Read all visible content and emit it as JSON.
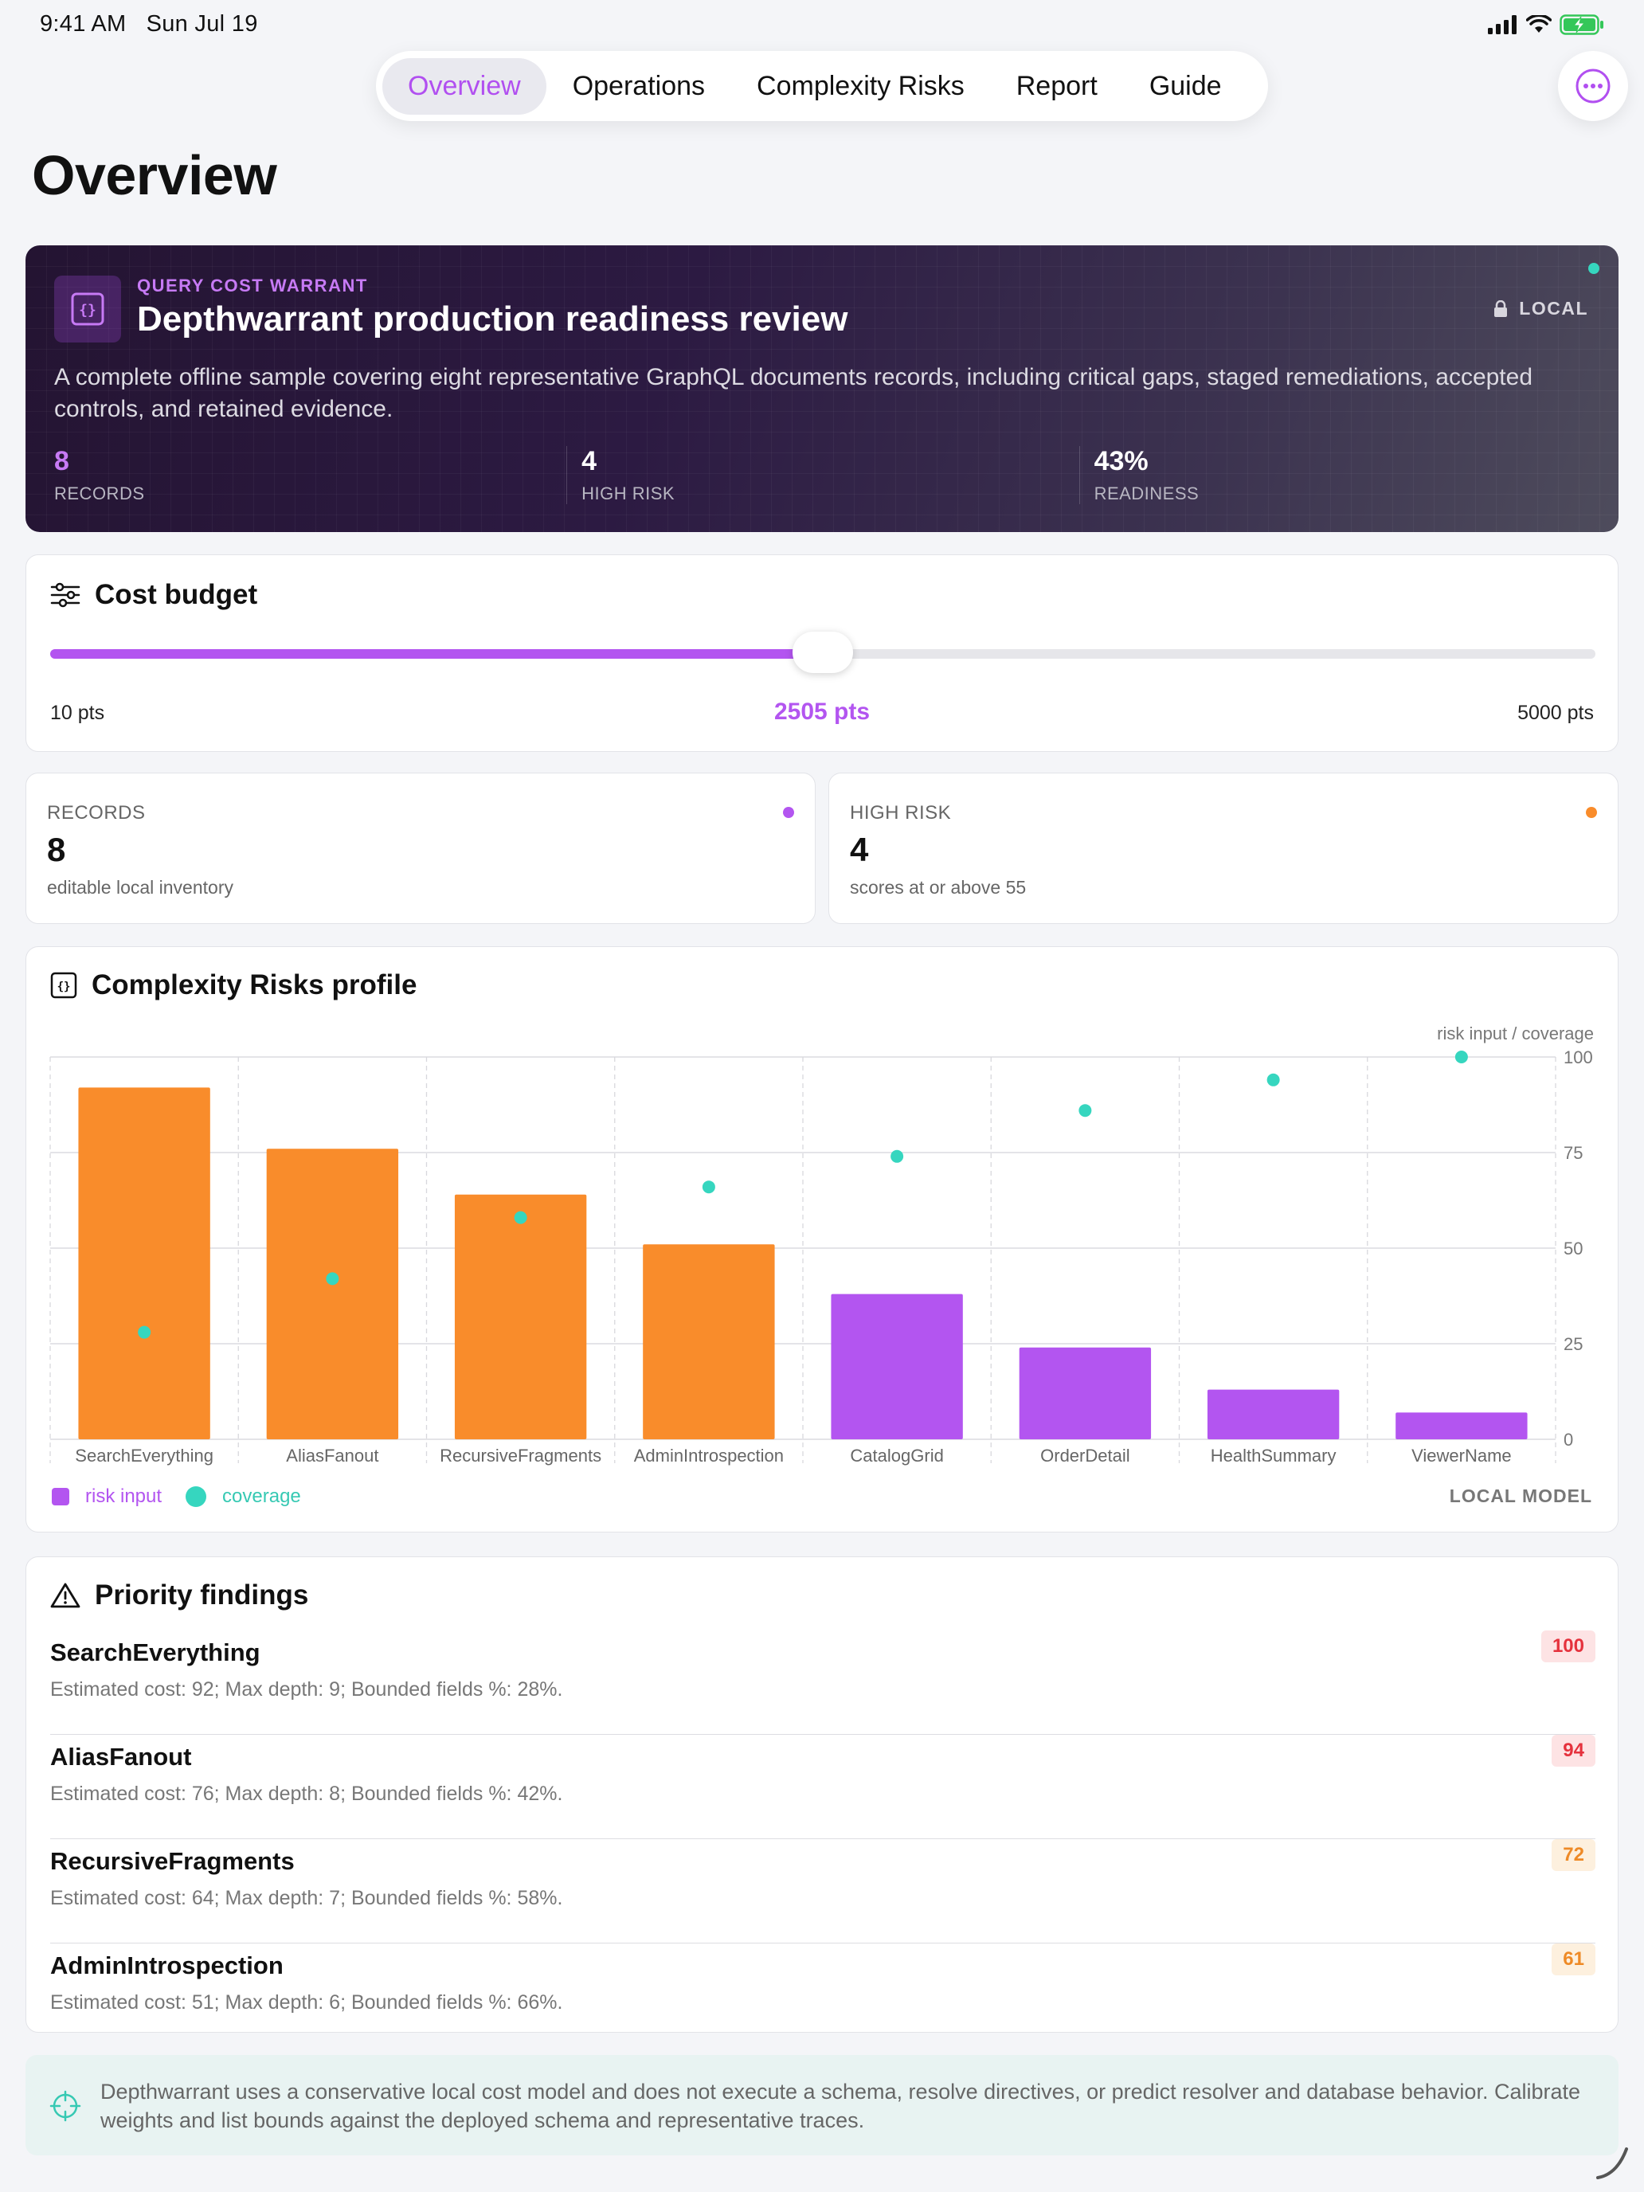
{
  "status_bar": {
    "time": "9:41 AM",
    "date": "Sun Jul 19"
  },
  "tabs": [
    {
      "label": "Overview",
      "active": true
    },
    {
      "label": "Operations",
      "active": false
    },
    {
      "label": "Complexity Risks",
      "active": false
    },
    {
      "label": "Report",
      "active": false
    },
    {
      "label": "Guide",
      "active": false
    }
  ],
  "page_title": "Overview",
  "hero": {
    "eyebrow": "QUERY COST WARRANT",
    "title": "Depthwarrant production readiness review",
    "badge": "LOCAL",
    "description": "A complete offline sample covering eight representative GraphQL documents records, including critical gaps, staged remediations, accepted controls, and retained evidence.",
    "stats": [
      {
        "value": "8",
        "label": "RECORDS"
      },
      {
        "value": "4",
        "label": "HIGH RISK"
      },
      {
        "value": "43%",
        "label": "READINESS"
      }
    ]
  },
  "budget": {
    "title": "Cost budget",
    "min_label": "10 pts",
    "current_label": "2505 pts",
    "max_label": "5000 pts",
    "min": 10,
    "max": 5000,
    "value": 2505
  },
  "stat_cards": [
    {
      "label": "RECORDS",
      "value": "8",
      "sub": "editable local inventory",
      "color": "#b355f0"
    },
    {
      "label": "HIGH RISK",
      "value": "4",
      "sub": "scores at or above 55",
      "color": "#f98c2b"
    }
  ],
  "chart_section": {
    "title": "Complexity Risks profile",
    "legend_risk": "risk input",
    "legend_coverage": "coverage",
    "model_label": "LOCAL MODEL"
  },
  "chart_data": {
    "type": "bar",
    "categories": [
      "SearchEverything",
      "AliasFanout",
      "RecursiveFragments",
      "AdminIntrospection",
      "CatalogGrid",
      "OrderDetail",
      "HealthSummary",
      "ViewerName"
    ],
    "series": [
      {
        "name": "risk input",
        "type": "bar",
        "values": [
          92,
          76,
          64,
          51,
          38,
          24,
          13,
          7
        ]
      },
      {
        "name": "coverage",
        "type": "scatter",
        "values": [
          28,
          42,
          58,
          66,
          74,
          86,
          94,
          100
        ]
      }
    ],
    "bar_colors": [
      "#f98c2b",
      "#f98c2b",
      "#f98c2b",
      "#f98c2b",
      "#b355f0",
      "#b355f0",
      "#b355f0",
      "#b355f0"
    ],
    "coverage_color": "#36d6bf",
    "axis_title": "risk input / coverage",
    "yticks": [
      0,
      25,
      50,
      75,
      100
    ],
    "ylim": [
      0,
      100
    ],
    "grid": true,
    "legend_position": "bottom-left"
  },
  "findings": {
    "title": "Priority findings",
    "items": [
      {
        "name": "SearchEverything",
        "detail": "Estimated cost: 92; Max depth: 9; Bounded fields %: 28%.",
        "score": "100",
        "severity": "critical"
      },
      {
        "name": "AliasFanout",
        "detail": "Estimated cost: 76; Max depth: 8; Bounded fields %: 42%.",
        "score": "94",
        "severity": "critical"
      },
      {
        "name": "RecursiveFragments",
        "detail": "Estimated cost: 64; Max depth: 7; Bounded fields %: 58%.",
        "score": "72",
        "severity": "high"
      },
      {
        "name": "AdminIntrospection",
        "detail": "Estimated cost: 51; Max depth: 6; Bounded fields %: 66%.",
        "score": "61",
        "severity": "high"
      }
    ]
  },
  "footer_note": "Depthwarrant uses a conservative local cost model and does not execute a schema, resolve directives, or predict resolver and database behavior. Calibrate weights and list bounds against the deployed schema and representative traces."
}
